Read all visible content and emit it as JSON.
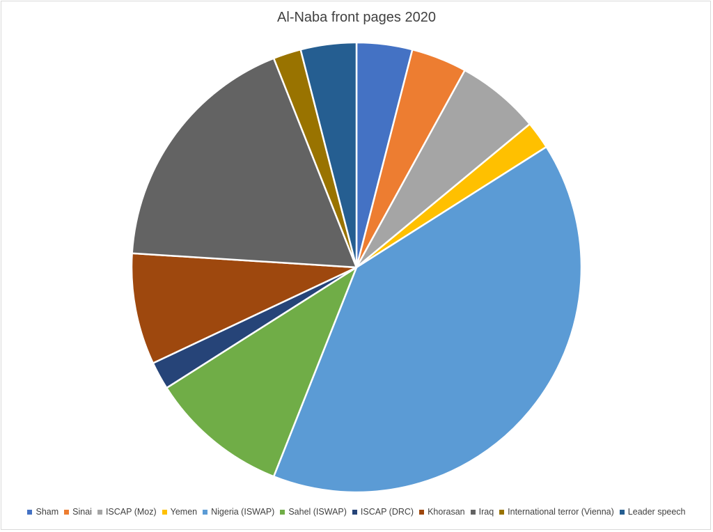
{
  "chart_data": {
    "type": "pie",
    "title": "Al-Naba front pages 2020",
    "legend_position": "bottom",
    "slices": [
      {
        "label": "Sham",
        "value": 2,
        "color": "#4472C4"
      },
      {
        "label": "Sinai",
        "value": 2,
        "color": "#ED7D31"
      },
      {
        "label": "ISCAP (Moz)",
        "value": 3,
        "color": "#A5A5A5"
      },
      {
        "label": "Yemen",
        "value": 1,
        "color": "#FFC000"
      },
      {
        "label": "Nigeria (ISWAP)",
        "value": 20,
        "color": "#5B9BD5"
      },
      {
        "label": "Sahel (ISWAP)",
        "value": 5,
        "color": "#70AD47"
      },
      {
        "label": "ISCAP (DRC)",
        "value": 1,
        "color": "#264478"
      },
      {
        "label": "Khorasan",
        "value": 4,
        "color": "#9E480E"
      },
      {
        "label": "Iraq",
        "value": 9,
        "color": "#636363"
      },
      {
        "label": "International terror (Vienna)",
        "value": 1,
        "color": "#997300"
      },
      {
        "label": "Leader speech",
        "value": 2,
        "color": "#255E91"
      }
    ]
  }
}
